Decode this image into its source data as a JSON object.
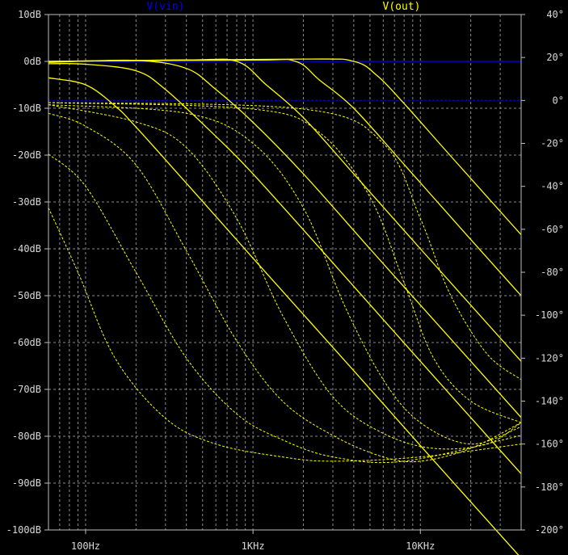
{
  "chart_data": {
    "type": "line",
    "title": "",
    "xlabel": "",
    "ylabel": "",
    "xscale": "log",
    "xlim": [
      60,
      40000
    ],
    "ylim_left_db": [
      -100,
      10
    ],
    "ylim_right_deg": [
      -200,
      40
    ],
    "grid": true,
    "legend_placement": "top",
    "x_tick_labels": [
      "100Hz",
      "1KHz",
      "10KHz"
    ],
    "x_ticks": [
      100,
      1000,
      10000
    ],
    "y_left_tick_labels": [
      "10dB",
      "0dB",
      "-10dB",
      "-20dB",
      "-30dB",
      "-40dB",
      "-50dB",
      "-60dB",
      "-70dB",
      "-80dB",
      "-90dB",
      "-100dB"
    ],
    "y_left_ticks": [
      10,
      0,
      -10,
      -20,
      -30,
      -40,
      -50,
      -60,
      -70,
      -80,
      -90,
      -100
    ],
    "y_right_tick_labels": [
      "40°",
      "20°",
      "0°",
      "-20°",
      "-40°",
      "-60°",
      "-80°",
      "-100°",
      "-120°",
      "-140°",
      "-160°",
      "-180°",
      "-200°"
    ],
    "y_right_ticks": [
      40,
      20,
      0,
      -20,
      -40,
      -60,
      -80,
      -100,
      -120,
      -140,
      -160,
      -180,
      -200
    ],
    "legend": [
      {
        "name": "V(vin)",
        "color": "#0000ff"
      },
      {
        "name": "V(out)",
        "color": "#ffff00"
      }
    ],
    "series": [
      {
        "name": "V(vin)",
        "kind": "magnitude",
        "color": "#0000ff",
        "x": [
          60,
          40000
        ],
        "y": [
          0,
          0
        ]
      },
      {
        "name": "V(vin)",
        "kind": "phase",
        "color": "#0000ff",
        "x": [
          60,
          40000
        ],
        "y": [
          0,
          0
        ]
      },
      {
        "name": "V(out)",
        "kind": "magnitude",
        "color": "#ffff00",
        "x": [
          60,
          100,
          150,
          200,
          400,
          1000,
          4000,
          10000,
          40000
        ],
        "y": [
          -3.5,
          -5.0,
          -9.5,
          -14,
          -26,
          -42,
          -66,
          -82,
          -106
        ]
      },
      {
        "name": "V(out)",
        "kind": "magnitude",
        "color": "#ffff00",
        "x": [
          60,
          100,
          200,
          300,
          600,
          1000,
          3000,
          10000,
          40000
        ],
        "y": [
          -0.5,
          -0.6,
          -2,
          -6,
          -16,
          -24,
          -43,
          -64,
          -88
        ]
      },
      {
        "name": "V(out)",
        "kind": "magnitude",
        "color": "#ffff00",
        "x": [
          60,
          200,
          400,
          600,
          1000,
          2000,
          5000,
          10000,
          40000
        ],
        "y": [
          -0.2,
          0.2,
          -1.5,
          -6,
          -13,
          -24,
          -40,
          -52,
          -76
        ]
      },
      {
        "name": "V(out)",
        "kind": "magnitude",
        "color": "#ffff00",
        "x": [
          60,
          400,
          800,
          1200,
          2000,
          4000,
          10000,
          40000
        ],
        "y": [
          0,
          0.3,
          0,
          -5,
          -12,
          -24,
          -40,
          -64
        ]
      },
      {
        "name": "V(out)",
        "kind": "magnitude",
        "color": "#ffff00",
        "x": [
          60,
          1000,
          1800,
          2500,
          4000,
          8000,
          20000,
          40000
        ],
        "y": [
          0,
          0.3,
          0,
          -4,
          -10,
          -22,
          -38,
          -50
        ]
      },
      {
        "name": "V(out)",
        "kind": "magnitude",
        "color": "#ffff00",
        "x": [
          60,
          2000,
          4000,
          5500,
          8000,
          15000,
          40000
        ],
        "y": [
          0,
          0.5,
          0,
          -3,
          -9,
          -20,
          -37
        ]
      },
      {
        "name": "V(out)",
        "kind": "phase",
        "color": "#ffff00",
        "x": [
          60,
          90,
          150,
          300,
          600,
          1500,
          3000,
          10000,
          40000
        ],
        "y": [
          -50,
          -80,
          -120,
          -148,
          -160,
          -166,
          -168,
          -166,
          -160
        ]
      },
      {
        "name": "V(out)",
        "kind": "phase",
        "color": "#ffff00",
        "x": [
          60,
          100,
          200,
          400,
          800,
          1500,
          3000,
          8000,
          40000
        ],
        "y": [
          -25,
          -40,
          -80,
          -120,
          -146,
          -158,
          -166,
          -168,
          -156
        ]
      },
      {
        "name": "V(out)",
        "kind": "phase",
        "color": "#ffff00",
        "x": [
          60,
          100,
          200,
          400,
          800,
          1500,
          3000,
          6000,
          10000,
          20000,
          40000
        ],
        "y": [
          -6,
          -12,
          -30,
          -70,
          -112,
          -140,
          -156,
          -166,
          -168,
          -162,
          -150
        ]
      },
      {
        "name": "V(out)",
        "kind": "phase",
        "color": "#ffff00",
        "x": [
          60,
          200,
          400,
          800,
          1500,
          3000,
          6000,
          12000,
          25000,
          40000
        ],
        "y": [
          -2,
          -10,
          -22,
          -55,
          -100,
          -138,
          -155,
          -162,
          -160,
          -150
        ]
      },
      {
        "name": "V(out)",
        "kind": "phase",
        "color": "#ffff00",
        "x": [
          60,
          400,
          1000,
          2000,
          3500,
          6000,
          10000,
          20000,
          40000
        ],
        "y": [
          -2,
          -6,
          -20,
          -50,
          -95,
          -130,
          -150,
          -160,
          -152
        ]
      },
      {
        "name": "V(out)",
        "kind": "phase",
        "color": "#ffff00",
        "x": [
          60,
          1000,
          2500,
          5000,
          8000,
          12000,
          20000,
          40000
        ],
        "y": [
          -1,
          -4,
          -15,
          -45,
          -85,
          -120,
          -140,
          -150
        ]
      },
      {
        "name": "V(out)",
        "kind": "phase",
        "color": "#ffff00",
        "x": [
          60,
          2000,
          6000,
          10000,
          15000,
          25000,
          40000
        ],
        "y": [
          -1,
          -4,
          -20,
          -55,
          -90,
          -118,
          -130
        ]
      }
    ]
  }
}
